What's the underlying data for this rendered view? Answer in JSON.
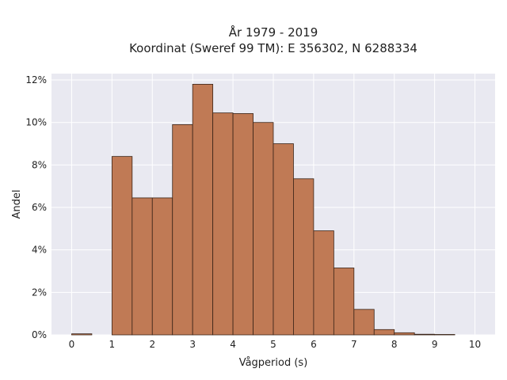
{
  "chart_data": {
    "type": "bar",
    "title": "År 1979 - 2019",
    "subtitle": "Koordinat (Sweref 99 TM): E 356302, N 6288334",
    "xlabel": "Vågperiod (s)",
    "ylabel": "Andel",
    "xlim": [
      -0.5,
      10.5
    ],
    "ylim": [
      0,
      12.3
    ],
    "grid": true,
    "bin_width": 0.5,
    "bin_starts": [
      0,
      0.5,
      1,
      1.5,
      2,
      2.5,
      3,
      3.5,
      4,
      4.5,
      5,
      5.5,
      6,
      6.5,
      7,
      7.5,
      8,
      8.5,
      9,
      9.5
    ],
    "values": [
      0.05,
      0,
      8.4,
      6.45,
      6.45,
      9.9,
      11.8,
      10.45,
      10.42,
      10.0,
      9.0,
      7.35,
      4.9,
      3.15,
      1.2,
      0.25,
      0.1,
      0.03,
      0.02,
      0
    ],
    "xticks": [
      0,
      1,
      2,
      3,
      4,
      5,
      6,
      7,
      8,
      9,
      10
    ],
    "xtick_labels": [
      "0",
      "1",
      "2",
      "3",
      "4",
      "5",
      "6",
      "7",
      "8",
      "9",
      "10"
    ],
    "yticks": [
      0,
      2,
      4,
      6,
      8,
      10,
      12
    ],
    "ytick_labels": [
      "0%",
      "2%",
      "4%",
      "6%",
      "8%",
      "10%",
      "12%"
    ],
    "bar_color": "#c07a55",
    "bar_edge_color": "#3a2418",
    "plot_background": "#e9e9f1",
    "grid_color": "#ffffff"
  }
}
